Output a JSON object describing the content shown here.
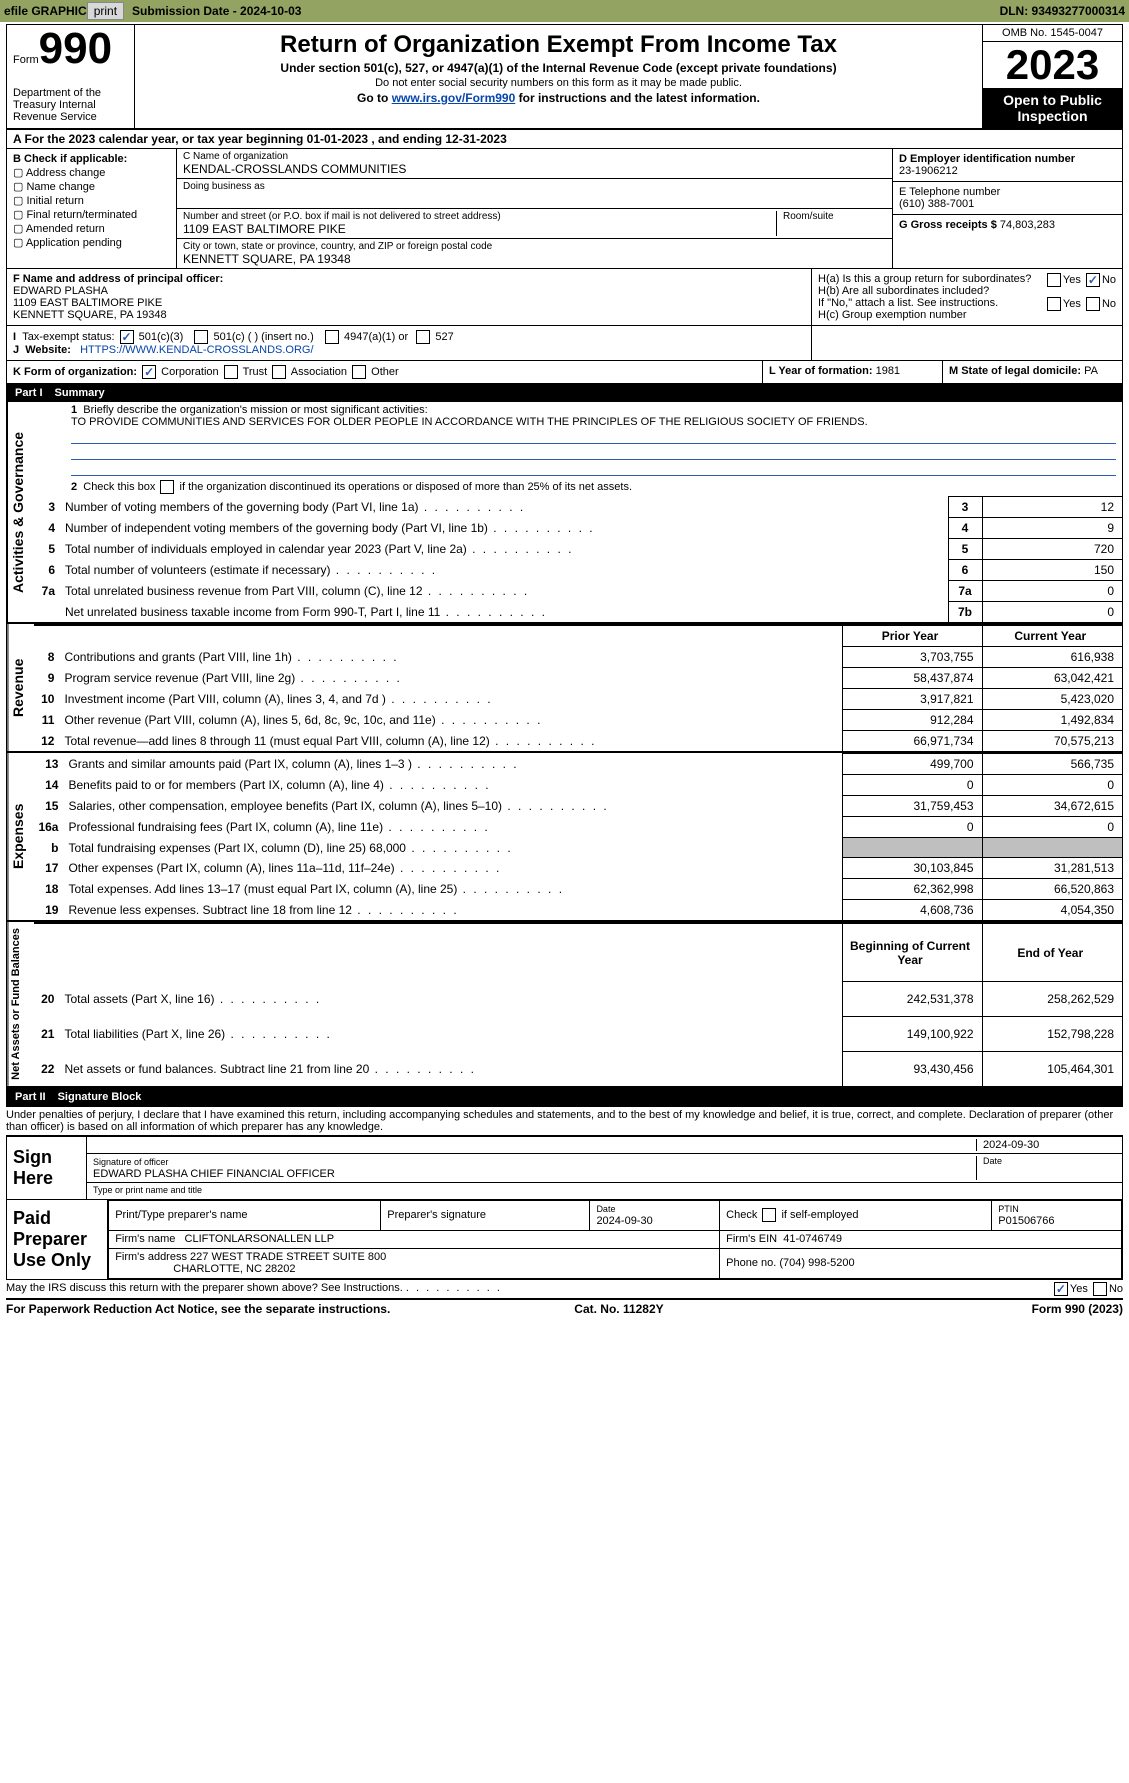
{
  "topbar": {
    "efile": "efile GRAPHIC",
    "print": "print",
    "sub_label": "Submission Date - 2024-10-03",
    "dln": "DLN: 93493277000314"
  },
  "header": {
    "form_word": "Form",
    "form_no": "990",
    "dept": "Department of the Treasury Internal Revenue Service",
    "title": "Return of Organization Exempt From Income Tax",
    "sub1": "Under section 501(c), 527, or 4947(a)(1) of the Internal Revenue Code (except private foundations)",
    "sub2": "Do not enter social security numbers on this form as it may be made public.",
    "sub3": "Go to www.irs.gov/Form990 for instructions and the latest information.",
    "link": "www.irs.gov/Form990",
    "omb": "OMB No. 1545-0047",
    "year": "2023",
    "open": "Open to Public Inspection"
  },
  "rowA": "A For the 2023 calendar year, or tax year beginning 01-01-2023   , and ending 12-31-2023",
  "boxB": {
    "title": "B Check if applicable:",
    "opts": [
      "Address change",
      "Name change",
      "Initial return",
      "Final return/terminated",
      "Amended return",
      "Application pending"
    ]
  },
  "boxC": {
    "c_name_cap": "C Name of organization",
    "c_name": "KENDAL-CROSSLANDS COMMUNITIES",
    "dba_cap": "Doing business as",
    "addr_cap": "Number and street (or P.O. box if mail is not delivered to street address)",
    "addr": "1109 EAST BALTIMORE PIKE",
    "room_cap": "Room/suite",
    "city_cap": "City or town, state or province, country, and ZIP or foreign postal code",
    "city": "KENNETT SQUARE, PA  19348"
  },
  "boxDE": {
    "d_cap": "D Employer identification number",
    "d_val": "23-1906212",
    "e_cap": "E Telephone number",
    "e_val": "(610) 388-7001",
    "g_cap": "G Gross receipts $",
    "g_val": "74,803,283"
  },
  "boxF": {
    "cap": "F Name and address of principal officer:",
    "name": "EDWARD PLASHA",
    "addr1": "1109 EAST BALTIMORE PIKE",
    "addr2": "KENNETT SQUARE, PA  19348"
  },
  "boxH": {
    "ha": "H(a)  Is this a group return for subordinates?",
    "hb": "H(b)  Are all subordinates included?",
    "hb_note": "If \"No,\" attach a list. See instructions.",
    "hc": "H(c)  Group exemption number ",
    "yes": "Yes",
    "no": "No"
  },
  "rowI": {
    "label": "Tax-exempt status:",
    "o1": "501(c)(3)",
    "o2": "501(c) (  ) (insert no.)",
    "o3": "4947(a)(1) or",
    "o4": "527"
  },
  "rowJ": {
    "label": "Website:",
    "val": "HTTPS://WWW.KENDAL-CROSSLANDS.ORG/"
  },
  "rowK": {
    "label": "K Form of organization:",
    "opts": [
      "Corporation",
      "Trust",
      "Association",
      "Other"
    ],
    "l_cap": "L Year of formation:",
    "l_val": "1981",
    "m_cap": "M State of legal domicile:",
    "m_val": "PA"
  },
  "part1": {
    "num": "Part I",
    "title": "Summary"
  },
  "summary": {
    "q1": "Briefly describe the organization's mission or most significant activities:",
    "mission": "TO PROVIDE COMMUNITIES AND SERVICES FOR OLDER PEOPLE IN ACCORDANCE WITH THE PRINCIPLES OF THE RELIGIOUS SOCIETY OF FRIENDS.",
    "q2": "Check this box      if the organization discontinued its operations or disposed of more than 25% of its net assets.",
    "lines_a": [
      {
        "n": "3",
        "t": "Number of voting members of the governing body (Part VI, line 1a)",
        "k": "3",
        "v": "12"
      },
      {
        "n": "4",
        "t": "Number of independent voting members of the governing body (Part VI, line 1b)",
        "k": "4",
        "v": "9"
      },
      {
        "n": "5",
        "t": "Total number of individuals employed in calendar year 2023 (Part V, line 2a)",
        "k": "5",
        "v": "720"
      },
      {
        "n": "6",
        "t": "Total number of volunteers (estimate if necessary)",
        "k": "6",
        "v": "150"
      },
      {
        "n": "7a",
        "t": "Total unrelated business revenue from Part VIII, column (C), line 12",
        "k": "7a",
        "v": "0"
      },
      {
        "n": "",
        "t": "Net unrelated business taxable income from Form 990-T, Part I, line 11",
        "k": "7b",
        "v": "0"
      }
    ],
    "hdr_prior": "Prior Year",
    "hdr_curr": "Current Year",
    "rev": [
      {
        "n": "8",
        "t": "Contributions and grants (Part VIII, line 1h)",
        "p": "3,703,755",
        "c": "616,938"
      },
      {
        "n": "9",
        "t": "Program service revenue (Part VIII, line 2g)",
        "p": "58,437,874",
        "c": "63,042,421"
      },
      {
        "n": "10",
        "t": "Investment income (Part VIII, column (A), lines 3, 4, and 7d )",
        "p": "3,917,821",
        "c": "5,423,020"
      },
      {
        "n": "11",
        "t": "Other revenue (Part VIII, column (A), lines 5, 6d, 8c, 9c, 10c, and 11e)",
        "p": "912,284",
        "c": "1,492,834"
      },
      {
        "n": "12",
        "t": "Total revenue—add lines 8 through 11 (must equal Part VIII, column (A), line 12)",
        "p": "66,971,734",
        "c": "70,575,213"
      }
    ],
    "exp": [
      {
        "n": "13",
        "t": "Grants and similar amounts paid (Part IX, column (A), lines 1–3 )",
        "p": "499,700",
        "c": "566,735"
      },
      {
        "n": "14",
        "t": "Benefits paid to or for members (Part IX, column (A), line 4)",
        "p": "0",
        "c": "0"
      },
      {
        "n": "15",
        "t": "Salaries, other compensation, employee benefits (Part IX, column (A), lines 5–10)",
        "p": "31,759,453",
        "c": "34,672,615"
      },
      {
        "n": "16a",
        "t": "Professional fundraising fees (Part IX, column (A), line 11e)",
        "p": "0",
        "c": "0"
      },
      {
        "n": "b",
        "t": "Total fundraising expenses (Part IX, column (D), line 25) 68,000",
        "p": "",
        "c": "",
        "grey": true
      },
      {
        "n": "17",
        "t": "Other expenses (Part IX, column (A), lines 11a–11d, 11f–24e)",
        "p": "30,103,845",
        "c": "31,281,513"
      },
      {
        "n": "18",
        "t": "Total expenses. Add lines 13–17 (must equal Part IX, column (A), line 25)",
        "p": "62,362,998",
        "c": "66,520,863"
      },
      {
        "n": "19",
        "t": "Revenue less expenses. Subtract line 18 from line 12",
        "p": "4,608,736",
        "c": "4,054,350"
      }
    ],
    "hdr_beg": "Beginning of Current Year",
    "hdr_end": "End of Year",
    "net": [
      {
        "n": "20",
        "t": "Total assets (Part X, line 16)",
        "p": "242,531,378",
        "c": "258,262,529"
      },
      {
        "n": "21",
        "t": "Total liabilities (Part X, line 26)",
        "p": "149,100,922",
        "c": "152,798,228"
      },
      {
        "n": "22",
        "t": "Net assets or fund balances. Subtract line 21 from line 20",
        "p": "93,430,456",
        "c": "105,464,301"
      }
    ],
    "vlab_ag": "Activities & Governance",
    "vlab_rev": "Revenue",
    "vlab_exp": "Expenses",
    "vlab_net": "Net Assets or Fund Balances"
  },
  "part2": {
    "num": "Part II",
    "title": "Signature Block"
  },
  "perjury": "Under penalties of perjury, I declare that I have examined this return, including accompanying schedules and statements, and to the best of my knowledge and belief, it is true, correct, and complete. Declaration of preparer (other than officer) is based on all information of which preparer has any knowledge.",
  "sign": {
    "here": "Sign Here",
    "sig_cap": "Signature of officer",
    "date_cap": "Date",
    "date_val": "2024-09-30",
    "name": "EDWARD PLASHA  CHIEF FINANCIAL OFFICER",
    "name_cap": "Type or print name and title"
  },
  "paid": {
    "label": "Paid Preparer Use Only",
    "pt_name_cap": "Print/Type preparer's name",
    "sig_cap": "Preparer's signature",
    "date_cap": "Date",
    "date_val": "2024-09-30",
    "check_cap": "Check        if self-employed",
    "ptin_cap": "PTIN",
    "ptin_val": "P01506766",
    "firm_name_cap": "Firm's name",
    "firm_name": "CLIFTONLARSONALLEN LLP",
    "firm_ein_cap": "Firm's EIN",
    "firm_ein": "41-0746749",
    "firm_addr_cap": "Firm's address",
    "firm_addr1": "227 WEST TRADE STREET SUITE 800",
    "firm_addr2": "CHARLOTTE, NC  28202",
    "phone_cap": "Phone no.",
    "phone": "(704) 998-5200"
  },
  "discuss": "May the IRS discuss this return with the preparer shown above? See Instructions.",
  "footer": {
    "pra": "For Paperwork Reduction Act Notice, see the separate instructions.",
    "cat": "Cat. No. 11282Y",
    "form": "Form 990 (2023)"
  }
}
